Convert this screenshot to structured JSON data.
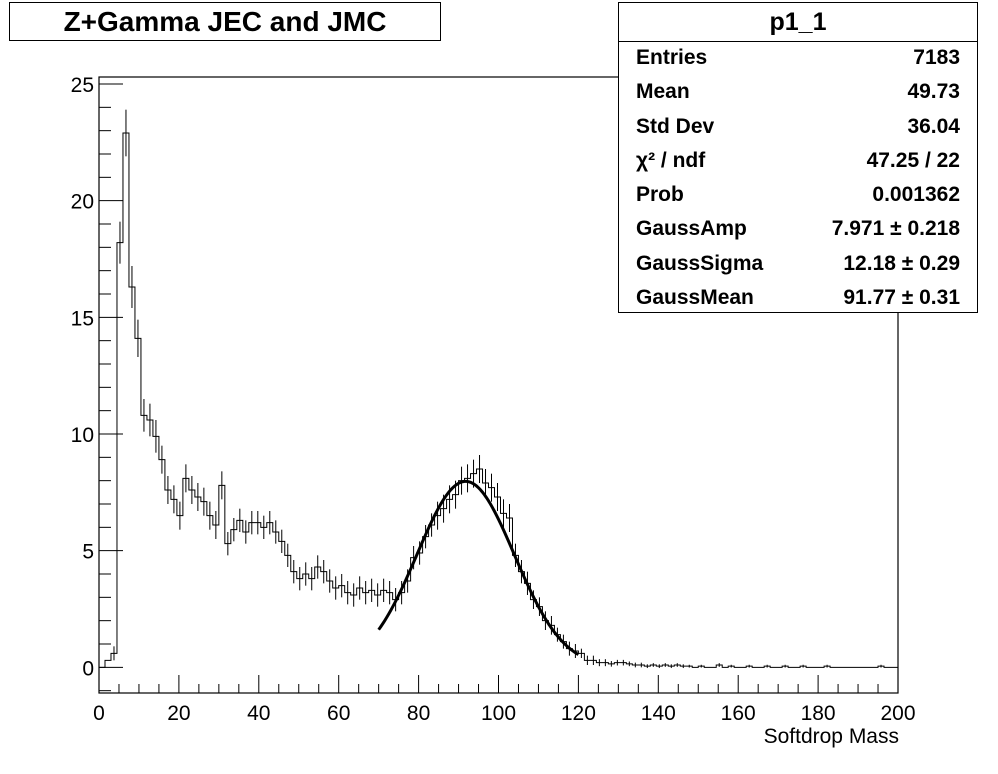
{
  "title": "Z+Gamma JEC and JMC",
  "stats": {
    "name": "p1_1",
    "rows": [
      {
        "label": "Entries",
        "value": "7183"
      },
      {
        "label": "Mean",
        "value": "49.73"
      },
      {
        "label": "Std Dev",
        "value": "36.04"
      },
      {
        "label": "χ² / ndf",
        "value": "47.25 / 22"
      },
      {
        "label": "Prob",
        "value": "0.001362"
      },
      {
        "label": "GaussAmp",
        "value": "7.971 ± 0.218"
      },
      {
        "label": "GaussSigma",
        "value": "12.18 ± 0.29"
      },
      {
        "label": "GaussMean",
        "value": "91.77 ± 0.31"
      }
    ]
  },
  "chart_data": {
    "type": "histogram",
    "xlabel": "Softdrop Mass",
    "ylabel": "",
    "xlim": [
      0,
      200
    ],
    "ylim": [
      -1.1,
      25.3
    ],
    "bin_width": 1.5,
    "xticks": [
      0,
      20,
      40,
      60,
      80,
      100,
      120,
      140,
      160,
      180,
      200
    ],
    "yticks": [
      0,
      5,
      10,
      15,
      20,
      25
    ],
    "grid": false,
    "bins": [
      [
        1.5,
        0.3,
        0
      ],
      [
        3.0,
        0.6,
        0.3
      ],
      [
        4.5,
        18.2,
        0.9
      ],
      [
        6.0,
        22.9,
        1.0
      ],
      [
        7.5,
        16.3,
        0.9
      ],
      [
        9.0,
        14.1,
        0.8
      ],
      [
        10.5,
        10.8,
        0.7
      ],
      [
        12.0,
        10.6,
        0.7
      ],
      [
        13.5,
        9.9,
        0.7
      ],
      [
        15.0,
        8.9,
        0.6
      ],
      [
        16.5,
        7.6,
        0.6
      ],
      [
        18.0,
        7.2,
        0.6
      ],
      [
        19.5,
        6.5,
        0.6
      ],
      [
        21.0,
        8.1,
        0.6
      ],
      [
        22.5,
        7.6,
        0.6
      ],
      [
        24.0,
        7.3,
        0.6
      ],
      [
        25.5,
        7.1,
        0.6
      ],
      [
        27.0,
        6.5,
        0.6
      ],
      [
        28.5,
        6.1,
        0.6
      ],
      [
        30.0,
        7.8,
        0.6
      ],
      [
        31.5,
        5.3,
        0.5
      ],
      [
        33.0,
        5.9,
        0.5
      ],
      [
        34.5,
        6.3,
        0.5
      ],
      [
        36.0,
        5.8,
        0.5
      ],
      [
        37.5,
        6.2,
        0.5
      ],
      [
        39.0,
        6.2,
        0.5
      ],
      [
        40.5,
        6.0,
        0.5
      ],
      [
        42.0,
        6.2,
        0.5
      ],
      [
        43.5,
        5.8,
        0.5
      ],
      [
        45.0,
        5.4,
        0.5
      ],
      [
        46.5,
        4.8,
        0.5
      ],
      [
        48.0,
        4.1,
        0.5
      ],
      [
        49.5,
        3.8,
        0.5
      ],
      [
        51.0,
        4.0,
        0.5
      ],
      [
        52.5,
        3.8,
        0.5
      ],
      [
        54.0,
        4.3,
        0.5
      ],
      [
        55.5,
        4.1,
        0.5
      ],
      [
        57.0,
        3.7,
        0.5
      ],
      [
        58.5,
        3.4,
        0.5
      ],
      [
        60.0,
        3.5,
        0.5
      ],
      [
        61.5,
        3.2,
        0.5
      ],
      [
        63.0,
        3.1,
        0.5
      ],
      [
        64.5,
        3.4,
        0.5
      ],
      [
        66.0,
        3.2,
        0.5
      ],
      [
        67.5,
        3.3,
        0.5
      ],
      [
        69.0,
        3.1,
        0.5
      ],
      [
        70.5,
        3.3,
        0.5
      ],
      [
        72.0,
        3.2,
        0.5
      ],
      [
        73.5,
        2.9,
        0.5
      ],
      [
        75.0,
        3.2,
        0.5
      ],
      [
        76.5,
        3.7,
        0.5
      ],
      [
        78.0,
        4.7,
        0.5
      ],
      [
        79.5,
        4.9,
        0.5
      ],
      [
        81.0,
        5.6,
        0.5
      ],
      [
        82.5,
        6.1,
        0.5
      ],
      [
        84.0,
        6.5,
        0.6
      ],
      [
        85.5,
        6.8,
        0.6
      ],
      [
        87.0,
        7.2,
        0.6
      ],
      [
        88.5,
        7.4,
        0.6
      ],
      [
        90.0,
        8.0,
        0.6
      ],
      [
        91.5,
        8.1,
        0.6
      ],
      [
        93.0,
        8.3,
        0.6
      ],
      [
        94.5,
        8.5,
        0.6
      ],
      [
        96.0,
        7.9,
        0.6
      ],
      [
        97.5,
        7.7,
        0.6
      ],
      [
        99.0,
        7.3,
        0.6
      ],
      [
        100.5,
        6.6,
        0.6
      ],
      [
        102.0,
        6.4,
        0.6
      ],
      [
        103.5,
        4.8,
        0.5
      ],
      [
        105.0,
        4.1,
        0.5
      ],
      [
        106.5,
        3.6,
        0.5
      ],
      [
        108.0,
        2.9,
        0.4
      ],
      [
        109.5,
        2.6,
        0.4
      ],
      [
        111.0,
        2.0,
        0.4
      ],
      [
        112.5,
        1.8,
        0.4
      ],
      [
        114.0,
        1.4,
        0.3
      ],
      [
        115.5,
        1.1,
        0.3
      ],
      [
        117.0,
        0.8,
        0.3
      ],
      [
        118.5,
        0.7,
        0.3
      ],
      [
        120.0,
        0.6,
        0.2
      ],
      [
        121.5,
        0.3,
        0.2
      ],
      [
        123.0,
        0.3,
        0.2
      ],
      [
        124.5,
        0.2,
        0.15
      ],
      [
        126.0,
        0.2,
        0.15
      ],
      [
        127.5,
        0.15,
        0.12
      ],
      [
        129.0,
        0.2,
        0.12
      ],
      [
        130.5,
        0.2,
        0.12
      ],
      [
        132.0,
        0.15,
        0.1
      ],
      [
        133.5,
        0.1,
        0.1
      ],
      [
        135.0,
        0.1,
        0.1
      ],
      [
        136.5,
        0.05,
        0.08
      ],
      [
        138.0,
        0.1,
        0.08
      ],
      [
        139.5,
        0.05,
        0.08
      ],
      [
        141.0,
        0.1,
        0.08
      ],
      [
        142.5,
        0.05,
        0.08
      ],
      [
        144.0,
        0.1,
        0.08
      ],
      [
        145.5,
        0.05,
        0.08
      ],
      [
        147.0,
        0.05,
        0.06
      ],
      [
        150.0,
        0.05,
        0.06
      ],
      [
        154.5,
        0.1,
        0.08
      ],
      [
        157.5,
        0.05,
        0.06
      ],
      [
        162.0,
        0.05,
        0.06
      ],
      [
        166.5,
        0.05,
        0.06
      ],
      [
        171.0,
        0.05,
        0.06
      ],
      [
        175.5,
        0.05,
        0.06
      ],
      [
        181.5,
        0.05,
        0.06
      ],
      [
        195.0,
        0.05,
        0.06
      ]
    ],
    "fit": {
      "function": "gaussian",
      "amp": 7.971,
      "mean": 91.77,
      "sigma": 12.18,
      "xrange": [
        70,
        120
      ]
    }
  }
}
